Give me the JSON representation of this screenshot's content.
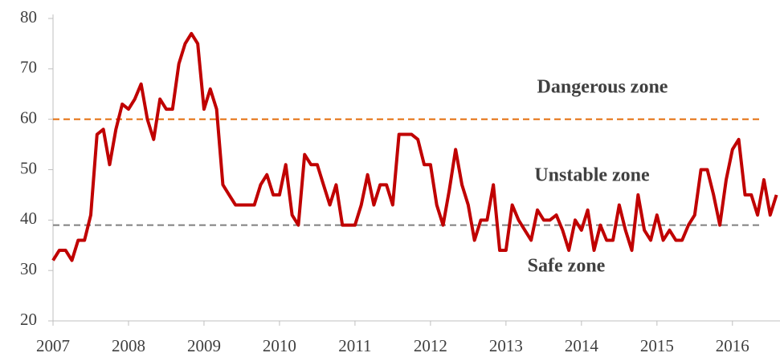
{
  "chart_data": {
    "type": "line",
    "x": [
      2007,
      2007.083,
      2007.167,
      2007.25,
      2007.333,
      2007.417,
      2007.5,
      2007.583,
      2007.667,
      2007.75,
      2007.833,
      2007.917,
      2008,
      2008.083,
      2008.167,
      2008.25,
      2008.333,
      2008.417,
      2008.5,
      2008.583,
      2008.667,
      2008.75,
      2008.833,
      2008.917,
      2009,
      2009.083,
      2009.167,
      2009.25,
      2009.333,
      2009.417,
      2009.5,
      2009.583,
      2009.667,
      2009.75,
      2009.833,
      2009.917,
      2010,
      2010.083,
      2010.167,
      2010.25,
      2010.333,
      2010.417,
      2010.5,
      2010.583,
      2010.667,
      2010.75,
      2010.833,
      2010.917,
      2011,
      2011.083,
      2011.167,
      2011.25,
      2011.333,
      2011.417,
      2011.5,
      2011.583,
      2011.667,
      2011.75,
      2011.833,
      2011.917,
      2012,
      2012.083,
      2012.167,
      2012.25,
      2012.333,
      2012.417,
      2012.5,
      2012.583,
      2012.667,
      2012.75,
      2012.833,
      2012.917,
      2013,
      2013.083,
      2013.167,
      2013.25,
      2013.333,
      2013.417,
      2013.5,
      2013.583,
      2013.667,
      2013.75,
      2013.833,
      2013.917,
      2014,
      2014.083,
      2014.167,
      2014.25,
      2014.333,
      2014.417,
      2014.5,
      2014.583,
      2014.667,
      2014.75,
      2014.833,
      2014.917,
      2015,
      2015.083,
      2015.167,
      2015.25,
      2015.333,
      2015.417,
      2015.5,
      2015.583,
      2015.667,
      2015.75,
      2015.833,
      2015.917,
      2016,
      2016.083,
      2016.167,
      2016.25,
      2016.333,
      2016.417,
      2016.5,
      2016.583
    ],
    "series": [
      {
        "color": "#c00000",
        "values": [
          32,
          34,
          34,
          32,
          36,
          36,
          41,
          57,
          58,
          51,
          58,
          63,
          62,
          64,
          67,
          60,
          56,
          64,
          62,
          62,
          71,
          75,
          77,
          75,
          62,
          66,
          62,
          47,
          45,
          43,
          43,
          43,
          43,
          47,
          49,
          45,
          45,
          51,
          41,
          39,
          53,
          51,
          51,
          47,
          43,
          47,
          39,
          39,
          39,
          43,
          49,
          43,
          47,
          47,
          43,
          57,
          57,
          57,
          56,
          51,
          51,
          43,
          39,
          46,
          54,
          47,
          43,
          36,
          40,
          40,
          47,
          34,
          34,
          43,
          40,
          38,
          36,
          42,
          40,
          40,
          41,
          38,
          34,
          40,
          38,
          42,
          34,
          39,
          36,
          36,
          43,
          38,
          34,
          45,
          38,
          36,
          41,
          36,
          38,
          36,
          36,
          39,
          41,
          50,
          50,
          45,
          39,
          48,
          54,
          56,
          45,
          45,
          41,
          48,
          41,
          45
        ]
      }
    ],
    "reference_lines": [
      {
        "value": 60,
        "color": "#e46c0a"
      },
      {
        "value": 39,
        "color": "#7f7f7f"
      }
    ],
    "annotations": [
      "Dangerous zone",
      "Unstable zone",
      "Safe zone"
    ],
    "xlim": [
      2007,
      2016.63
    ],
    "xticks": [
      2007,
      2008,
      2009,
      2010,
      2011,
      2012,
      2013,
      2014,
      2015,
      2016
    ],
    "ylim": [
      20,
      80
    ],
    "yticks": [
      20,
      30,
      40,
      50,
      60,
      70,
      80
    ]
  }
}
